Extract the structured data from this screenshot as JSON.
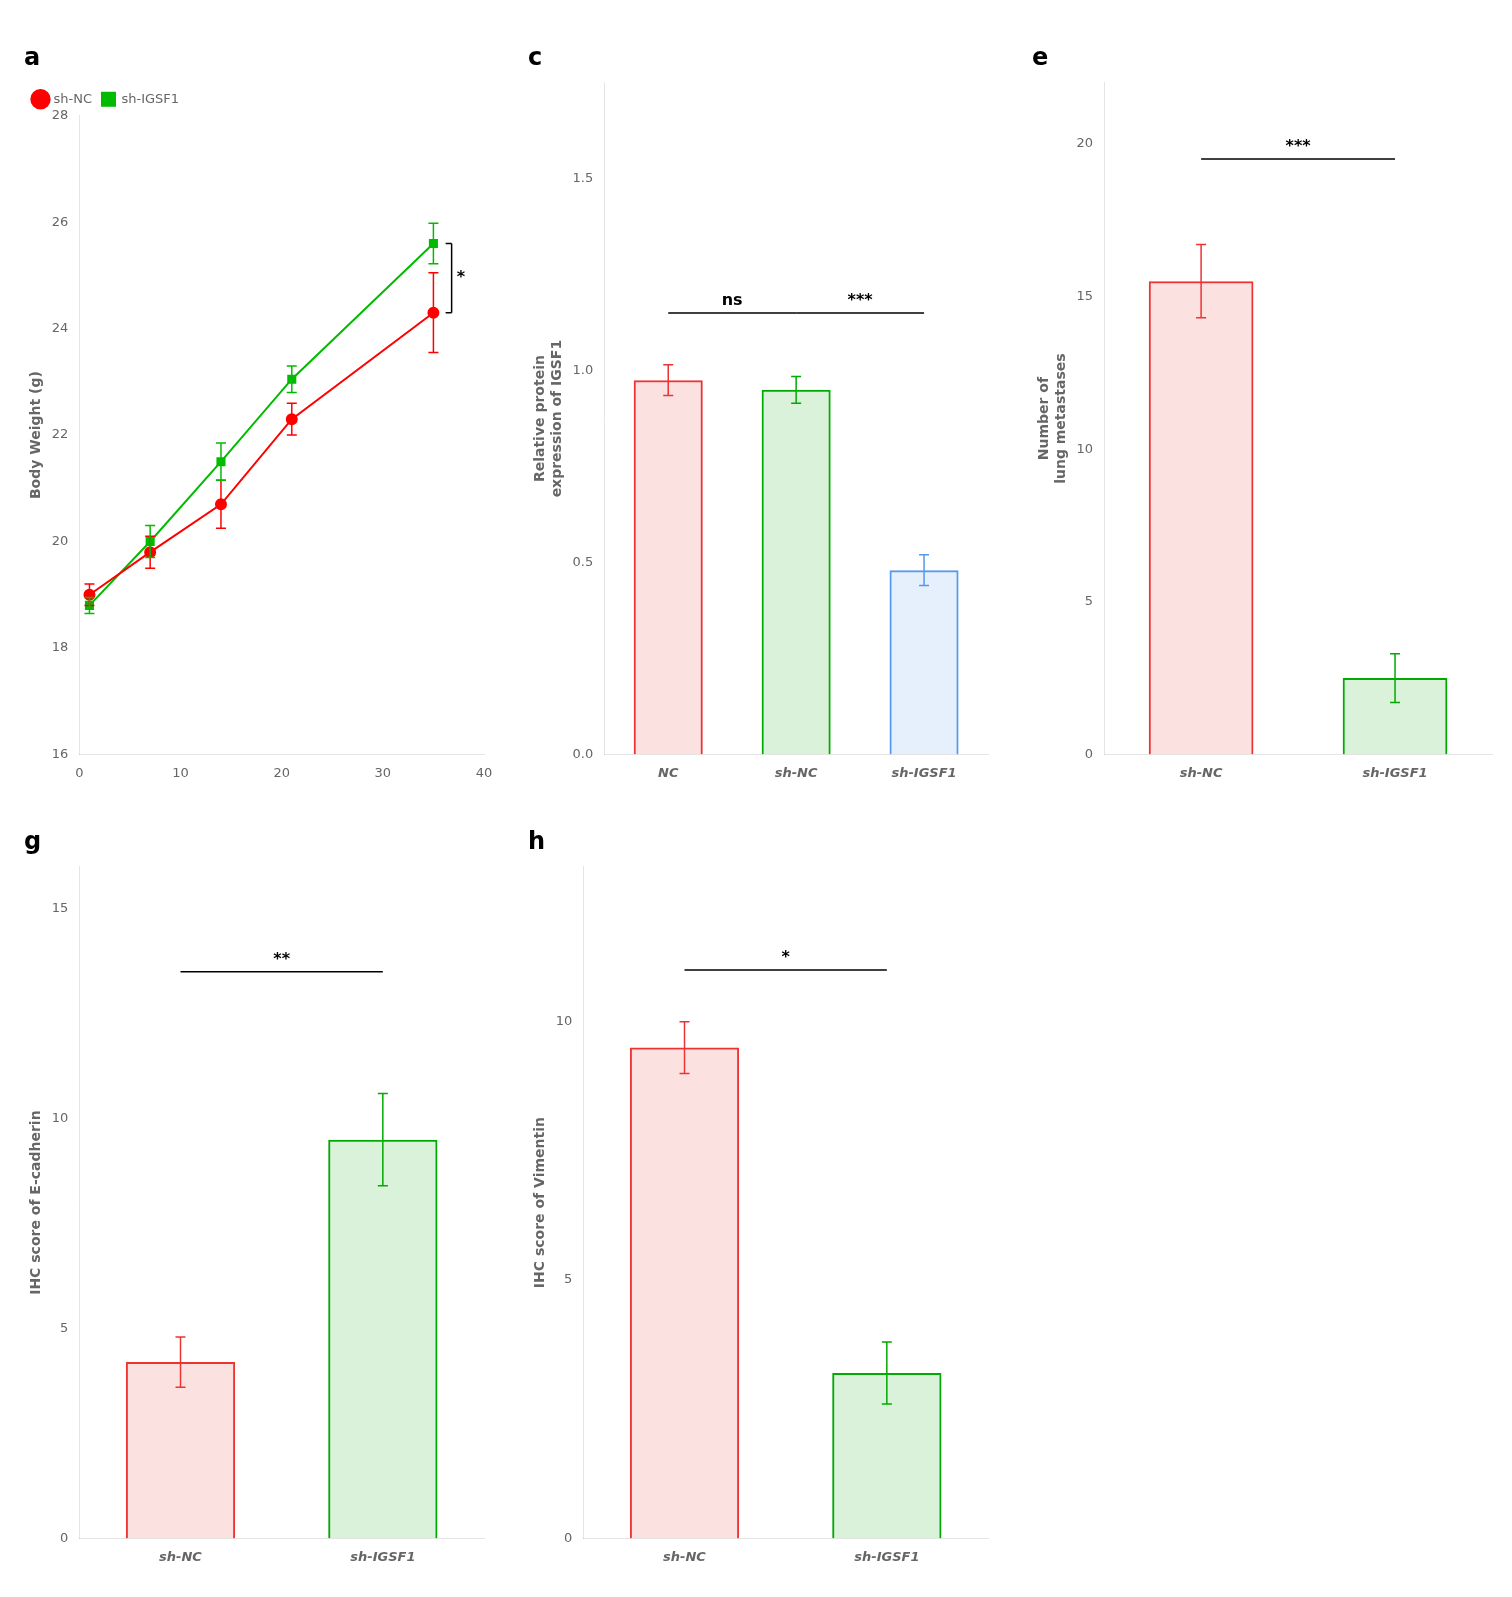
{
  "chart_data": [
    {
      "type": "line",
      "title": "a",
      "ylabel": "Body Weight (g)",
      "x": [
        1,
        7,
        14,
        21,
        35
      ],
      "series": [
        {
          "name": "sh-NC",
          "color": "#FF0000",
          "marker": "circle",
          "values": [
            19.0,
            19.8,
            20.7,
            22.3,
            24.3
          ],
          "errors": [
            0.2,
            0.3,
            0.45,
            0.3,
            0.75
          ]
        },
        {
          "name": "sh-IGSF1",
          "color": "#00BB00",
          "marker": "square",
          "values": [
            18.8,
            20.0,
            21.5,
            23.05,
            25.6
          ],
          "errors": [
            0.15,
            0.3,
            0.35,
            0.25,
            0.38
          ]
        }
      ],
      "xlim": [
        0,
        40
      ],
      "xticks": [
        0,
        10,
        20,
        30,
        40
      ],
      "ylim": [
        16,
        28
      ],
      "yticks": [
        16,
        18,
        20,
        22,
        24,
        26,
        28
      ],
      "legend": "top-left",
      "grid": false,
      "annotations": [
        {
          "text": "*",
          "x": 36.8,
          "y": [
            24.3,
            25.6
          ]
        }
      ]
    },
    {
      "type": "bar",
      "title": "c",
      "ylabel": "Relative protein\nexpression of IGSF1",
      "categories": [
        "NC",
        "sh-NC",
        "sh-IGSF1"
      ],
      "values": [
        0.975,
        0.95,
        0.48
      ],
      "errors": [
        0.04,
        0.035,
        0.04
      ],
      "colors": [
        "#EE3333",
        "#00AA00",
        "#5599EE"
      ],
      "ylim": [
        0,
        1.75
      ],
      "yticks": [
        {
          "value": 0,
          "label": "0.0"
        },
        0.5,
        {
          "value": 1,
          "label": "1.0"
        },
        1.5
      ],
      "grid": false,
      "annotations": [
        {
          "text": "ns",
          "x": [
            "NC",
            "sh-NC"
          ],
          "y": 1.15
        },
        {
          "text": "***",
          "x": [
            "sh-NC",
            "sh-IGSF1"
          ],
          "y": 1.15
        }
      ]
    },
    {
      "type": "bar",
      "title": "e",
      "ylabel": "Number of\nlung metastases",
      "categories": [
        "sh-NC",
        "sh-IGSF1"
      ],
      "values": [
        15.5,
        2.5
      ],
      "errors": [
        1.2,
        0.8
      ],
      "colors": [
        "#EE3333",
        "#00AA00"
      ],
      "ylim": [
        0,
        22
      ],
      "yticks": [
        0,
        5,
        10,
        15,
        20
      ],
      "grid": false,
      "annotations": [
        {
          "text": "***",
          "x": [
            "sh-NC",
            "sh-IGSF1"
          ],
          "y": 19.5
        }
      ]
    },
    {
      "type": "bar",
      "title": "g",
      "ylabel": "IHC score of E-cadherin",
      "categories": [
        "sh-NC",
        "sh-IGSF1"
      ],
      "values": [
        4.2,
        9.5
      ],
      "errors": [
        0.6,
        1.1
      ],
      "colors": [
        "#EE3333",
        "#00AA00"
      ],
      "ylim": [
        0,
        16
      ],
      "yticks": [
        0,
        5,
        10,
        15
      ],
      "grid": false,
      "annotations": [
        {
          "text": "**",
          "x": [
            "sh-NC",
            "sh-IGSF1"
          ],
          "y": 13.5
        }
      ]
    },
    {
      "type": "bar",
      "title": "h",
      "ylabel": "IHC score of Vimentin",
      "categories": [
        "sh-NC",
        "sh-IGSF1"
      ],
      "values": [
        9.5,
        3.2
      ],
      "errors": [
        0.5,
        0.6
      ],
      "colors": [
        "#EE3333",
        "#00AA00"
      ],
      "ylim": [
        0,
        13
      ],
      "yticks": [
        0,
        5,
        10
      ],
      "grid": false,
      "annotations": [
        {
          "text": "*",
          "x": [
            "sh-NC",
            "sh-IGSF1"
          ],
          "y": 11.0
        }
      ]
    }
  ]
}
